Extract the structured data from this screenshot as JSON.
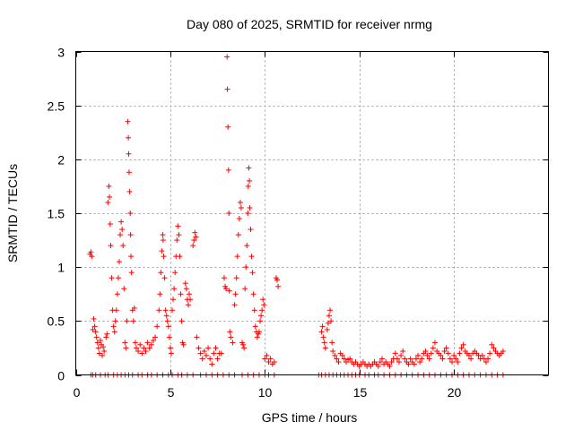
{
  "chart_data": {
    "type": "scatter",
    "title": "Day 080 of 2025, SRMTID for receiver nrmg",
    "xlabel": "GPS time / hours",
    "ylabel": "SRMTID / TECUs",
    "xlim": [
      0,
      25
    ],
    "ylim": [
      0,
      3
    ],
    "xticks": [
      0,
      5,
      10,
      15,
      20
    ],
    "yticks": [
      0,
      0.5,
      1,
      1.5,
      2,
      2.5,
      3
    ],
    "xtick_labels": [
      "0",
      "5",
      "10",
      "15",
      "20"
    ],
    "ytick_labels": [
      "0",
      "0.5",
      "1",
      "1.5",
      "2",
      "2.5",
      "3"
    ],
    "grid": true,
    "marker": "plus",
    "series": [
      {
        "name": "SRMTID",
        "color": "#ff0000",
        "points": [
          [
            0.75,
            1.12
          ],
          [
            0.8,
            1.14
          ],
          [
            0.85,
            1.1
          ],
          [
            0.9,
            0.42
          ],
          [
            0.95,
            0.52
          ],
          [
            1.0,
            0.45
          ],
          [
            1.05,
            0.4
          ],
          [
            1.1,
            0.35
          ],
          [
            1.15,
            0.3
          ],
          [
            1.2,
            0.25
          ],
          [
            1.25,
            0.2
          ],
          [
            1.3,
            0.32
          ],
          [
            1.35,
            0.28
          ],
          [
            1.4,
            0.18
          ],
          [
            1.45,
            0.26
          ],
          [
            1.5,
            0.22
          ],
          [
            1.6,
            0.35
          ],
          [
            1.65,
            0.38
          ],
          [
            1.7,
            1.6
          ],
          [
            1.75,
            1.75
          ],
          [
            1.78,
            1.65
          ],
          [
            1.82,
            1.4
          ],
          [
            1.85,
            1.2
          ],
          [
            1.9,
            0.9
          ],
          [
            1.95,
            0.6
          ],
          [
            2.0,
            0.45
          ],
          [
            2.05,
            0.4
          ],
          [
            2.1,
            0.5
          ],
          [
            2.15,
            0.6
          ],
          [
            2.2,
            0.75
          ],
          [
            2.25,
            0.9
          ],
          [
            2.3,
            1.05
          ],
          [
            2.35,
            1.3
          ],
          [
            2.4,
            1.42
          ],
          [
            2.45,
            1.35
          ],
          [
            2.5,
            1.2
          ],
          [
            2.55,
            0.8
          ],
          [
            2.6,
            0.3
          ],
          [
            2.65,
            0.25
          ],
          [
            2.7,
            0.5
          ],
          [
            2.75,
            2.35
          ],
          [
            2.78,
            2.2
          ],
          [
            2.8,
            2.05
          ],
          [
            2.82,
            1.88
          ],
          [
            2.85,
            1.7
          ],
          [
            2.88,
            1.5
          ],
          [
            2.9,
            1.3
          ],
          [
            2.92,
            1.1
          ],
          [
            2.95,
            0.95
          ],
          [
            3.0,
            0.6
          ],
          [
            3.05,
            0.5
          ],
          [
            3.1,
            0.62
          ],
          [
            3.15,
            0.3
          ],
          [
            3.2,
            0.25
          ],
          [
            3.3,
            0.22
          ],
          [
            3.4,
            0.28
          ],
          [
            3.5,
            0.2
          ],
          [
            3.6,
            0.25
          ],
          [
            3.7,
            0.22
          ],
          [
            3.8,
            0.3
          ],
          [
            3.9,
            0.25
          ],
          [
            4.0,
            0.28
          ],
          [
            4.1,
            0.32
          ],
          [
            4.2,
            0.35
          ],
          [
            4.3,
            0.45
          ],
          [
            4.4,
            0.6
          ],
          [
            4.45,
            0.75
          ],
          [
            4.5,
            0.95
          ],
          [
            4.55,
            1.15
          ],
          [
            4.6,
            1.3
          ],
          [
            4.62,
            1.25
          ],
          [
            4.65,
            1.1
          ],
          [
            4.7,
            0.9
          ],
          [
            4.75,
            0.6
          ],
          [
            4.8,
            0.55
          ],
          [
            4.85,
            0.5
          ],
          [
            4.9,
            0.45
          ],
          [
            4.95,
            0.35
          ],
          [
            5.0,
            0.25
          ],
          [
            5.05,
            0.2
          ],
          [
            5.1,
            0.6
          ],
          [
            5.15,
            0.7
          ],
          [
            5.2,
            0.8
          ],
          [
            5.25,
            0.95
          ],
          [
            5.3,
            1.1
          ],
          [
            5.35,
            1.25
          ],
          [
            5.4,
            1.38
          ],
          [
            5.45,
            1.3
          ],
          [
            5.5,
            1.1
          ],
          [
            5.55,
            0.75
          ],
          [
            5.6,
            0.5
          ],
          [
            5.65,
            0.3
          ],
          [
            5.7,
            0.28
          ],
          [
            5.8,
            0.85
          ],
          [
            5.85,
            0.8
          ],
          [
            5.9,
            0.7
          ],
          [
            5.95,
            0.65
          ],
          [
            6.0,
            0.75
          ],
          [
            6.05,
            0.7
          ],
          [
            6.2,
            1.2
          ],
          [
            6.25,
            1.25
          ],
          [
            6.3,
            1.32
          ],
          [
            6.35,
            1.28
          ],
          [
            6.4,
            0.35
          ],
          [
            6.5,
            0.25
          ],
          [
            6.6,
            0.2
          ],
          [
            6.7,
            0.15
          ],
          [
            6.8,
            0.22
          ],
          [
            6.9,
            0.18
          ],
          [
            7.0,
            0.25
          ],
          [
            7.1,
            0.15
          ],
          [
            7.2,
            0.1
          ],
          [
            7.3,
            0.2
          ],
          [
            7.4,
            0.25
          ],
          [
            7.5,
            0.15
          ],
          [
            7.6,
            0.2
          ],
          [
            7.7,
            0.2
          ],
          [
            7.85,
            0.9
          ],
          [
            7.9,
            0.82
          ],
          [
            7.95,
            0.8
          ],
          [
            8.0,
            2.95
          ],
          [
            8.02,
            2.65
          ],
          [
            8.05,
            2.3
          ],
          [
            8.08,
            1.9
          ],
          [
            8.1,
            1.5
          ],
          [
            8.12,
            0.78
          ],
          [
            8.15,
            0.4
          ],
          [
            8.2,
            0.35
          ],
          [
            8.3,
            0.3
          ],
          [
            8.4,
            0.65
          ],
          [
            8.45,
            0.75
          ],
          [
            8.5,
            0.9
          ],
          [
            8.55,
            1.1
          ],
          [
            8.6,
            1.3
          ],
          [
            8.65,
            1.45
          ],
          [
            8.7,
            1.6
          ],
          [
            8.75,
            1.55
          ],
          [
            8.8,
            0.3
          ],
          [
            8.85,
            0.28
          ],
          [
            8.9,
            0.25
          ],
          [
            8.95,
            0.8
          ],
          [
            9.0,
            1.0
          ],
          [
            9.05,
            1.2
          ],
          [
            9.1,
            1.5
          ],
          [
            9.12,
            1.75
          ],
          [
            9.15,
            1.92
          ],
          [
            9.18,
            1.8
          ],
          [
            9.2,
            1.55
          ],
          [
            9.25,
            1.35
          ],
          [
            9.3,
            1.1
          ],
          [
            9.35,
            0.95
          ],
          [
            9.4,
            0.75
          ],
          [
            9.45,
            0.6
          ],
          [
            9.5,
            0.45
          ],
          [
            9.55,
            0.4
          ],
          [
            9.6,
            0.35
          ],
          [
            9.65,
            0.38
          ],
          [
            9.7,
            0.4
          ],
          [
            9.75,
            0.5
          ],
          [
            9.8,
            0.55
          ],
          [
            9.85,
            0.6
          ],
          [
            9.9,
            0.7
          ],
          [
            9.95,
            0.65
          ],
          [
            10.0,
            0.15
          ],
          [
            10.1,
            0.18
          ],
          [
            10.2,
            0.12
          ],
          [
            10.3,
            0.15
          ],
          [
            10.4,
            0.1
          ],
          [
            10.5,
            0.12
          ],
          [
            10.6,
            0.9
          ],
          [
            10.65,
            0.88
          ],
          [
            10.7,
            0.82
          ],
          [
            13.0,
            0.4
          ],
          [
            13.05,
            0.45
          ],
          [
            13.1,
            0.35
          ],
          [
            13.15,
            0.3
          ],
          [
            13.2,
            0.25
          ],
          [
            13.3,
            0.42
          ],
          [
            13.35,
            0.48
          ],
          [
            13.4,
            0.55
          ],
          [
            13.45,
            0.6
          ],
          [
            13.5,
            0.5
          ],
          [
            13.55,
            0.3
          ],
          [
            13.6,
            0.22
          ],
          [
            13.7,
            0.18
          ],
          [
            13.8,
            0.15
          ],
          [
            13.9,
            0.12
          ],
          [
            14.0,
            0.2
          ],
          [
            14.1,
            0.18
          ],
          [
            14.2,
            0.15
          ],
          [
            14.3,
            0.12
          ],
          [
            14.4,
            0.14
          ],
          [
            14.5,
            0.15
          ],
          [
            14.6,
            0.12
          ],
          [
            14.7,
            0.1
          ],
          [
            14.8,
            0.12
          ],
          [
            14.9,
            0.1
          ],
          [
            15.0,
            0.08
          ],
          [
            15.1,
            0.1
          ],
          [
            15.2,
            0.12
          ],
          [
            15.3,
            0.1
          ],
          [
            15.4,
            0.08
          ],
          [
            15.5,
            0.1
          ],
          [
            15.6,
            0.08
          ],
          [
            15.7,
            0.1
          ],
          [
            15.8,
            0.12
          ],
          [
            15.9,
            0.1
          ],
          [
            16.0,
            0.08
          ],
          [
            16.1,
            0.12
          ],
          [
            16.2,
            0.15
          ],
          [
            16.3,
            0.1
          ],
          [
            16.4,
            0.12
          ],
          [
            16.5,
            0.1
          ],
          [
            16.6,
            0.08
          ],
          [
            16.7,
            0.12
          ],
          [
            16.8,
            0.15
          ],
          [
            16.9,
            0.2
          ],
          [
            17.0,
            0.15
          ],
          [
            17.1,
            0.12
          ],
          [
            17.2,
            0.18
          ],
          [
            17.3,
            0.22
          ],
          [
            17.4,
            0.15
          ],
          [
            17.5,
            0.12
          ],
          [
            17.6,
            0.1
          ],
          [
            17.7,
            0.15
          ],
          [
            17.8,
            0.12
          ],
          [
            17.9,
            0.1
          ],
          [
            18.0,
            0.15
          ],
          [
            18.1,
            0.18
          ],
          [
            18.2,
            0.12
          ],
          [
            18.3,
            0.15
          ],
          [
            18.4,
            0.2
          ],
          [
            18.5,
            0.22
          ],
          [
            18.6,
            0.18
          ],
          [
            18.7,
            0.15
          ],
          [
            18.8,
            0.2
          ],
          [
            18.9,
            0.25
          ],
          [
            19.0,
            0.3
          ],
          [
            19.1,
            0.22
          ],
          [
            19.2,
            0.2
          ],
          [
            19.3,
            0.18
          ],
          [
            19.4,
            0.15
          ],
          [
            19.5,
            0.22
          ],
          [
            19.6,
            0.25
          ],
          [
            19.7,
            0.2
          ],
          [
            19.8,
            0.15
          ],
          [
            19.9,
            0.12
          ],
          [
            20.0,
            0.18
          ],
          [
            20.1,
            0.15
          ],
          [
            20.2,
            0.12
          ],
          [
            20.3,
            0.2
          ],
          [
            20.4,
            0.25
          ],
          [
            20.5,
            0.28
          ],
          [
            20.6,
            0.22
          ],
          [
            20.7,
            0.2
          ],
          [
            20.8,
            0.18
          ],
          [
            20.9,
            0.15
          ],
          [
            21.0,
            0.2
          ],
          [
            21.1,
            0.22
          ],
          [
            21.2,
            0.2
          ],
          [
            21.3,
            0.18
          ],
          [
            21.4,
            0.15
          ],
          [
            21.5,
            0.18
          ],
          [
            21.6,
            0.15
          ],
          [
            21.7,
            0.12
          ],
          [
            21.8,
            0.15
          ],
          [
            21.9,
            0.2
          ],
          [
            22.0,
            0.28
          ],
          [
            22.1,
            0.25
          ],
          [
            22.2,
            0.22
          ],
          [
            22.3,
            0.2
          ],
          [
            22.4,
            0.18
          ],
          [
            22.5,
            0.2
          ],
          [
            22.6,
            0.22
          ]
        ],
        "zero_points": [
          0.8,
          0.9,
          1.05,
          1.3,
          1.55,
          1.7,
          2.0,
          2.2,
          2.4,
          2.6,
          2.8,
          3.0,
          3.3,
          3.5,
          3.8,
          4.0,
          4.3,
          4.6,
          4.9,
          5.1,
          5.4,
          5.6,
          5.9,
          6.2,
          6.6,
          6.9,
          7.2,
          7.5,
          7.8,
          8.1,
          8.4,
          8.8,
          9.1,
          9.4,
          9.7,
          10.0,
          10.2,
          10.5,
          12.85,
          13.0,
          13.2,
          13.4,
          13.6,
          13.8,
          14.0,
          14.2,
          14.4,
          14.6,
          14.8,
          15.0,
          15.3,
          15.5,
          15.8,
          16.0,
          16.3,
          16.6,
          16.9,
          17.2,
          17.5,
          17.8,
          18.1,
          18.4,
          18.7,
          19.0,
          19.3,
          19.6,
          19.9,
          20.2,
          20.5,
          20.8,
          21.1,
          21.4,
          21.7,
          22.0,
          22.3,
          22.6
        ]
      }
    ]
  }
}
